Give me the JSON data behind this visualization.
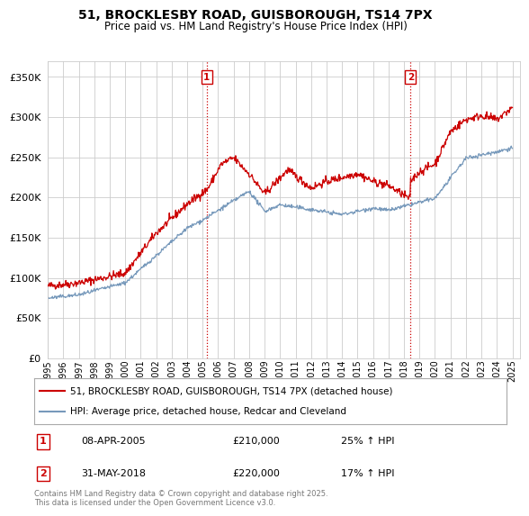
{
  "title": "51, BROCKLESBY ROAD, GUISBOROUGH, TS14 7PX",
  "subtitle": "Price paid vs. HM Land Registry's House Price Index (HPI)",
  "ylabel_ticks": [
    "£0",
    "£50K",
    "£100K",
    "£150K",
    "£200K",
    "£250K",
    "£300K",
    "£350K"
  ],
  "ytick_values": [
    0,
    50000,
    100000,
    150000,
    200000,
    250000,
    300000,
    350000
  ],
  "ylim": [
    0,
    370000
  ],
  "xlim_start": 1995.0,
  "xlim_end": 2025.5,
  "red_color": "#cc0000",
  "blue_color": "#7799bb",
  "vline_color": "#cc0000",
  "grid_color": "#cccccc",
  "annotation1": {
    "num": "1",
    "date": "08-APR-2005",
    "price": "£210,000",
    "hpi": "25% ↑ HPI",
    "year": 2005.27
  },
  "annotation2": {
    "num": "2",
    "date": "31-MAY-2018",
    "price": "£220,000",
    "hpi": "17% ↑ HPI",
    "year": 2018.42
  },
  "legend1": "51, BROCKLESBY ROAD, GUISBOROUGH, TS14 7PX (detached house)",
  "legend2": "HPI: Average price, detached house, Redcar and Cleveland",
  "footer": "Contains HM Land Registry data © Crown copyright and database right 2025.\nThis data is licensed under the Open Government Licence v3.0.",
  "xtick_years": [
    1995,
    1996,
    1997,
    1998,
    1999,
    2000,
    2001,
    2002,
    2003,
    2004,
    2005,
    2006,
    2007,
    2008,
    2009,
    2010,
    2011,
    2012,
    2013,
    2014,
    2015,
    2016,
    2017,
    2018,
    2019,
    2020,
    2021,
    2022,
    2023,
    2024,
    2025
  ],
  "background_color": "#ffffff"
}
